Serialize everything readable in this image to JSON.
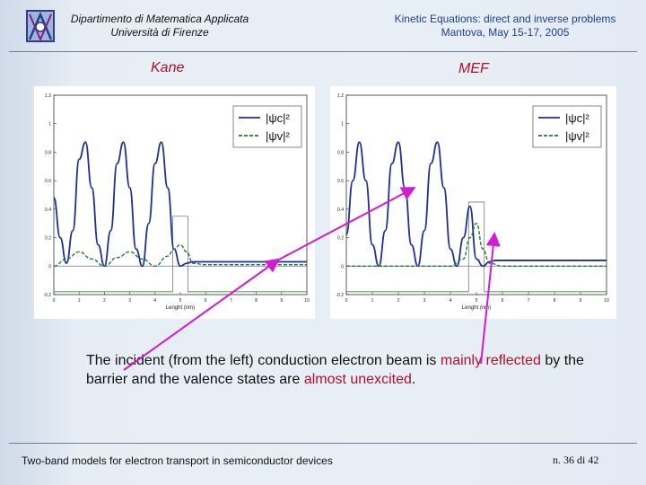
{
  "header": {
    "left_line1": "Dipartimento di Matematica Applicata",
    "left_line2": "Università di Firenze",
    "right_line1": "Kinetic Equations: direct and inverse problems",
    "right_line2": "Mantova, May 15-17, 2005"
  },
  "labels": {
    "left": "Kane",
    "right": "MEF"
  },
  "caption": {
    "part1": "The incident (from the left) conduction electron beam is ",
    "hl1": "mainly reflected",
    "part2": " by the barrier and the valence states are ",
    "hl2": "almost unexcited",
    "part3": "."
  },
  "footer": {
    "left": "Two-band models for electron transport in semiconductor devices",
    "right": "n. 36 di 42"
  },
  "colors": {
    "conduction": "#1f2f9a",
    "valence": "#1f7a3a",
    "arrow": "#d21bd2",
    "highlight": "#b0102a"
  },
  "chart_data": [
    {
      "type": "line",
      "title": "Kane",
      "xlabel": "Lenght (nm)",
      "xlim": [
        0,
        10
      ],
      "ylim": [
        -0.2,
        1.2
      ],
      "x_ticks": [
        "0",
        "1",
        "2",
        "3",
        "4",
        "5",
        "6",
        "7",
        "8",
        "9",
        "10"
      ],
      "y_ticks": [
        "-0.2",
        "0",
        "0.2",
        "0.4",
        "0.6",
        "0.8",
        "1",
        "1.2"
      ],
      "legend": [
        "|ψc|²",
        "|ψv|²"
      ],
      "barrier": {
        "x0": 4.7,
        "x1": 5.3,
        "top": 0.35
      },
      "series": [
        {
          "name": "|ψc|²",
          "x": [
            0,
            0.25,
            0.5,
            0.75,
            1,
            1.25,
            1.5,
            1.75,
            2,
            2.25,
            2.5,
            2.75,
            3,
            3.25,
            3.5,
            3.75,
            4,
            4.25,
            4.5,
            4.75,
            5,
            5.25,
            5.5,
            5.75,
            6,
            7,
            8,
            9,
            10
          ],
          "y": [
            0.48,
            0.2,
            0.02,
            0.25,
            0.75,
            0.87,
            0.55,
            0.15,
            0.0,
            0.25,
            0.72,
            0.87,
            0.55,
            0.12,
            0.0,
            0.3,
            0.72,
            0.87,
            0.55,
            0.12,
            0.0,
            0.02,
            0.03,
            0.03,
            0.03,
            0.03,
            0.03,
            0.03,
            0.03
          ]
        },
        {
          "name": "|ψv|²",
          "x": [
            0,
            0.5,
            1,
            1.5,
            2,
            2.5,
            3,
            3.5,
            4,
            4.5,
            4.75,
            5,
            5.25,
            5.5,
            6,
            7,
            8,
            9,
            10
          ],
          "y": [
            0.0,
            0.05,
            0.1,
            0.05,
            0.0,
            0.06,
            0.1,
            0.05,
            0.0,
            0.07,
            0.12,
            0.15,
            0.1,
            0.02,
            0.01,
            0.01,
            0.01,
            0.01,
            0.01
          ]
        }
      ]
    },
    {
      "type": "line",
      "title": "MEF",
      "xlabel": "Lenght (nm)",
      "xlim": [
        0,
        10
      ],
      "ylim": [
        -0.2,
        1.2
      ],
      "x_ticks": [
        "0",
        "1",
        "2",
        "3",
        "4",
        "5",
        "6",
        "7",
        "8",
        "9",
        "10"
      ],
      "y_ticks": [
        "-0.2",
        "0",
        "0.2",
        "0.4",
        "0.6",
        "0.8",
        "1",
        "1.2"
      ],
      "legend": [
        "|ψc|²",
        "|ψv|²"
      ],
      "barrier": {
        "x0": 4.7,
        "x1": 5.3,
        "top": 0.45
      },
      "series": [
        {
          "name": "|ψc|²",
          "x": [
            0,
            0.25,
            0.5,
            0.75,
            1,
            1.25,
            1.5,
            1.75,
            2,
            2.25,
            2.5,
            2.75,
            3,
            3.25,
            3.5,
            3.75,
            4,
            4.25,
            4.5,
            4.75,
            5,
            5.25,
            5.5,
            5.75,
            6,
            7,
            8,
            9,
            10
          ],
          "y": [
            0.22,
            0.6,
            0.87,
            0.6,
            0.15,
            0.0,
            0.25,
            0.72,
            0.87,
            0.55,
            0.15,
            0.0,
            0.25,
            0.72,
            0.87,
            0.55,
            0.12,
            0.0,
            0.2,
            0.42,
            0.05,
            0.0,
            0.03,
            0.04,
            0.04,
            0.04,
            0.04,
            0.04,
            0.04
          ]
        },
        {
          "name": "|ψv|²",
          "x": [
            0,
            1,
            2,
            3,
            4,
            4.5,
            4.75,
            5,
            5.25,
            5.5,
            6,
            7,
            8,
            9,
            10
          ],
          "y": [
            0.0,
            0.0,
            0.0,
            0.0,
            0.0,
            0.05,
            0.2,
            0.3,
            0.12,
            0.02,
            0.0,
            0.0,
            0.0,
            0.0,
            0.0
          ]
        }
      ]
    }
  ]
}
